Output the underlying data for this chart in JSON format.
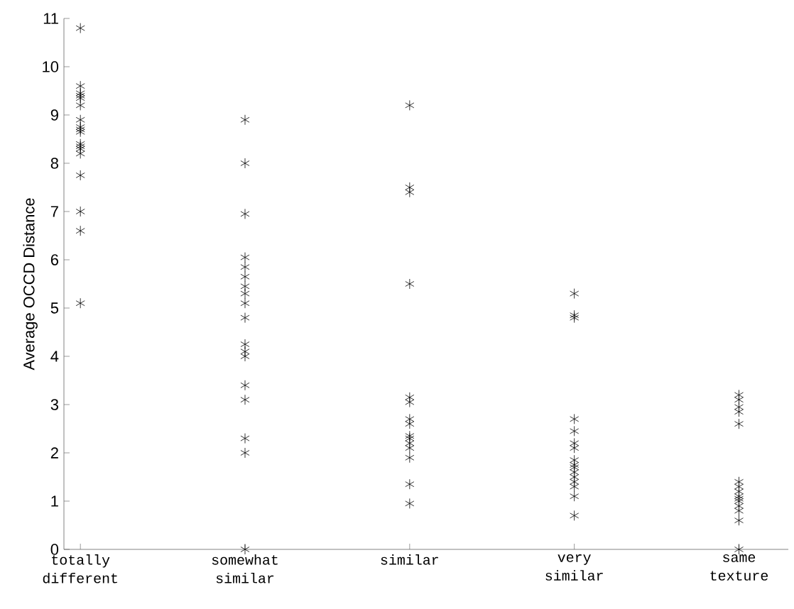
{
  "chart_data": {
    "type": "scatter",
    "ylabel": "Average OCCD Distance",
    "categories": [
      "totally different",
      "somewhat similar",
      "similar",
      "very similar",
      "same texture"
    ],
    "ylim": [
      0,
      11
    ],
    "yticks": [
      0,
      1,
      2,
      3,
      4,
      5,
      6,
      7,
      8,
      9,
      10,
      11
    ],
    "marker": "cross",
    "grid": false,
    "series": [
      {
        "color": "#000000",
        "x": [
          "totally different",
          "totally different",
          "totally different",
          "totally different",
          "totally different",
          "totally different",
          "totally different",
          "totally different",
          "totally different",
          "totally different",
          "totally different",
          "totally different",
          "totally different",
          "totally different",
          "totally different",
          "totally different",
          "totally different",
          "totally different"
        ],
        "values": [
          10.8,
          9.6,
          9.45,
          9.4,
          9.35,
          9.2,
          8.9,
          8.75,
          8.7,
          8.65,
          8.4,
          8.35,
          8.3,
          8.2,
          7.75,
          7.0,
          6.6,
          5.1
        ]
      },
      {
        "color": "#000000",
        "x": [
          "somewhat similar",
          "somewhat similar",
          "somewhat similar",
          "somewhat similar",
          "somewhat similar",
          "somewhat similar",
          "somewhat similar",
          "somewhat similar",
          "somewhat similar",
          "somewhat similar",
          "somewhat similar",
          "somewhat similar",
          "somewhat similar",
          "somewhat similar",
          "somewhat similar",
          "somewhat similar",
          "somewhat similar",
          "somewhat similar"
        ],
        "values": [
          8.9,
          8.0,
          6.95,
          6.05,
          5.85,
          5.65,
          5.45,
          5.3,
          5.1,
          4.8,
          4.25,
          4.1,
          4.0,
          3.4,
          3.1,
          2.3,
          2.0,
          0
        ]
      },
      {
        "color": "#000000",
        "x": [
          "similar",
          "similar",
          "similar",
          "similar",
          "similar",
          "similar",
          "similar",
          "similar",
          "similar",
          "similar",
          "similar",
          "similar",
          "similar",
          "similar",
          "similar"
        ],
        "values": [
          9.2,
          7.5,
          7.4,
          5.5,
          3.15,
          3.05,
          2.7,
          2.6,
          2.35,
          2.3,
          2.2,
          2.1,
          1.9,
          1.35,
          0.95
        ]
      },
      {
        "color": "#000000",
        "x": [
          "very similar",
          "very similar",
          "very similar",
          "very similar",
          "very similar",
          "very similar",
          "very similar",
          "very similar",
          "very similar",
          "very similar",
          "very similar",
          "very similar",
          "very similar",
          "very similar",
          "very similar",
          "very similar"
        ],
        "values": [
          5.3,
          4.85,
          4.8,
          2.7,
          2.45,
          2.2,
          2.1,
          1.85,
          1.75,
          1.7,
          1.6,
          1.5,
          1.4,
          1.3,
          1.1,
          0.7
        ]
      },
      {
        "color": "#000000",
        "x": [
          "same texture",
          "same texture",
          "same texture",
          "same texture",
          "same texture",
          "same texture",
          "same texture",
          "same texture",
          "same texture",
          "same texture",
          "same texture",
          "same texture",
          "same texture",
          "same texture",
          "same texture"
        ],
        "values": [
          3.2,
          3.1,
          2.95,
          2.85,
          2.6,
          1.4,
          1.3,
          1.2,
          1.1,
          1.05,
          1.0,
          0.9,
          0.8,
          0.6,
          0.0
        ]
      }
    ]
  }
}
